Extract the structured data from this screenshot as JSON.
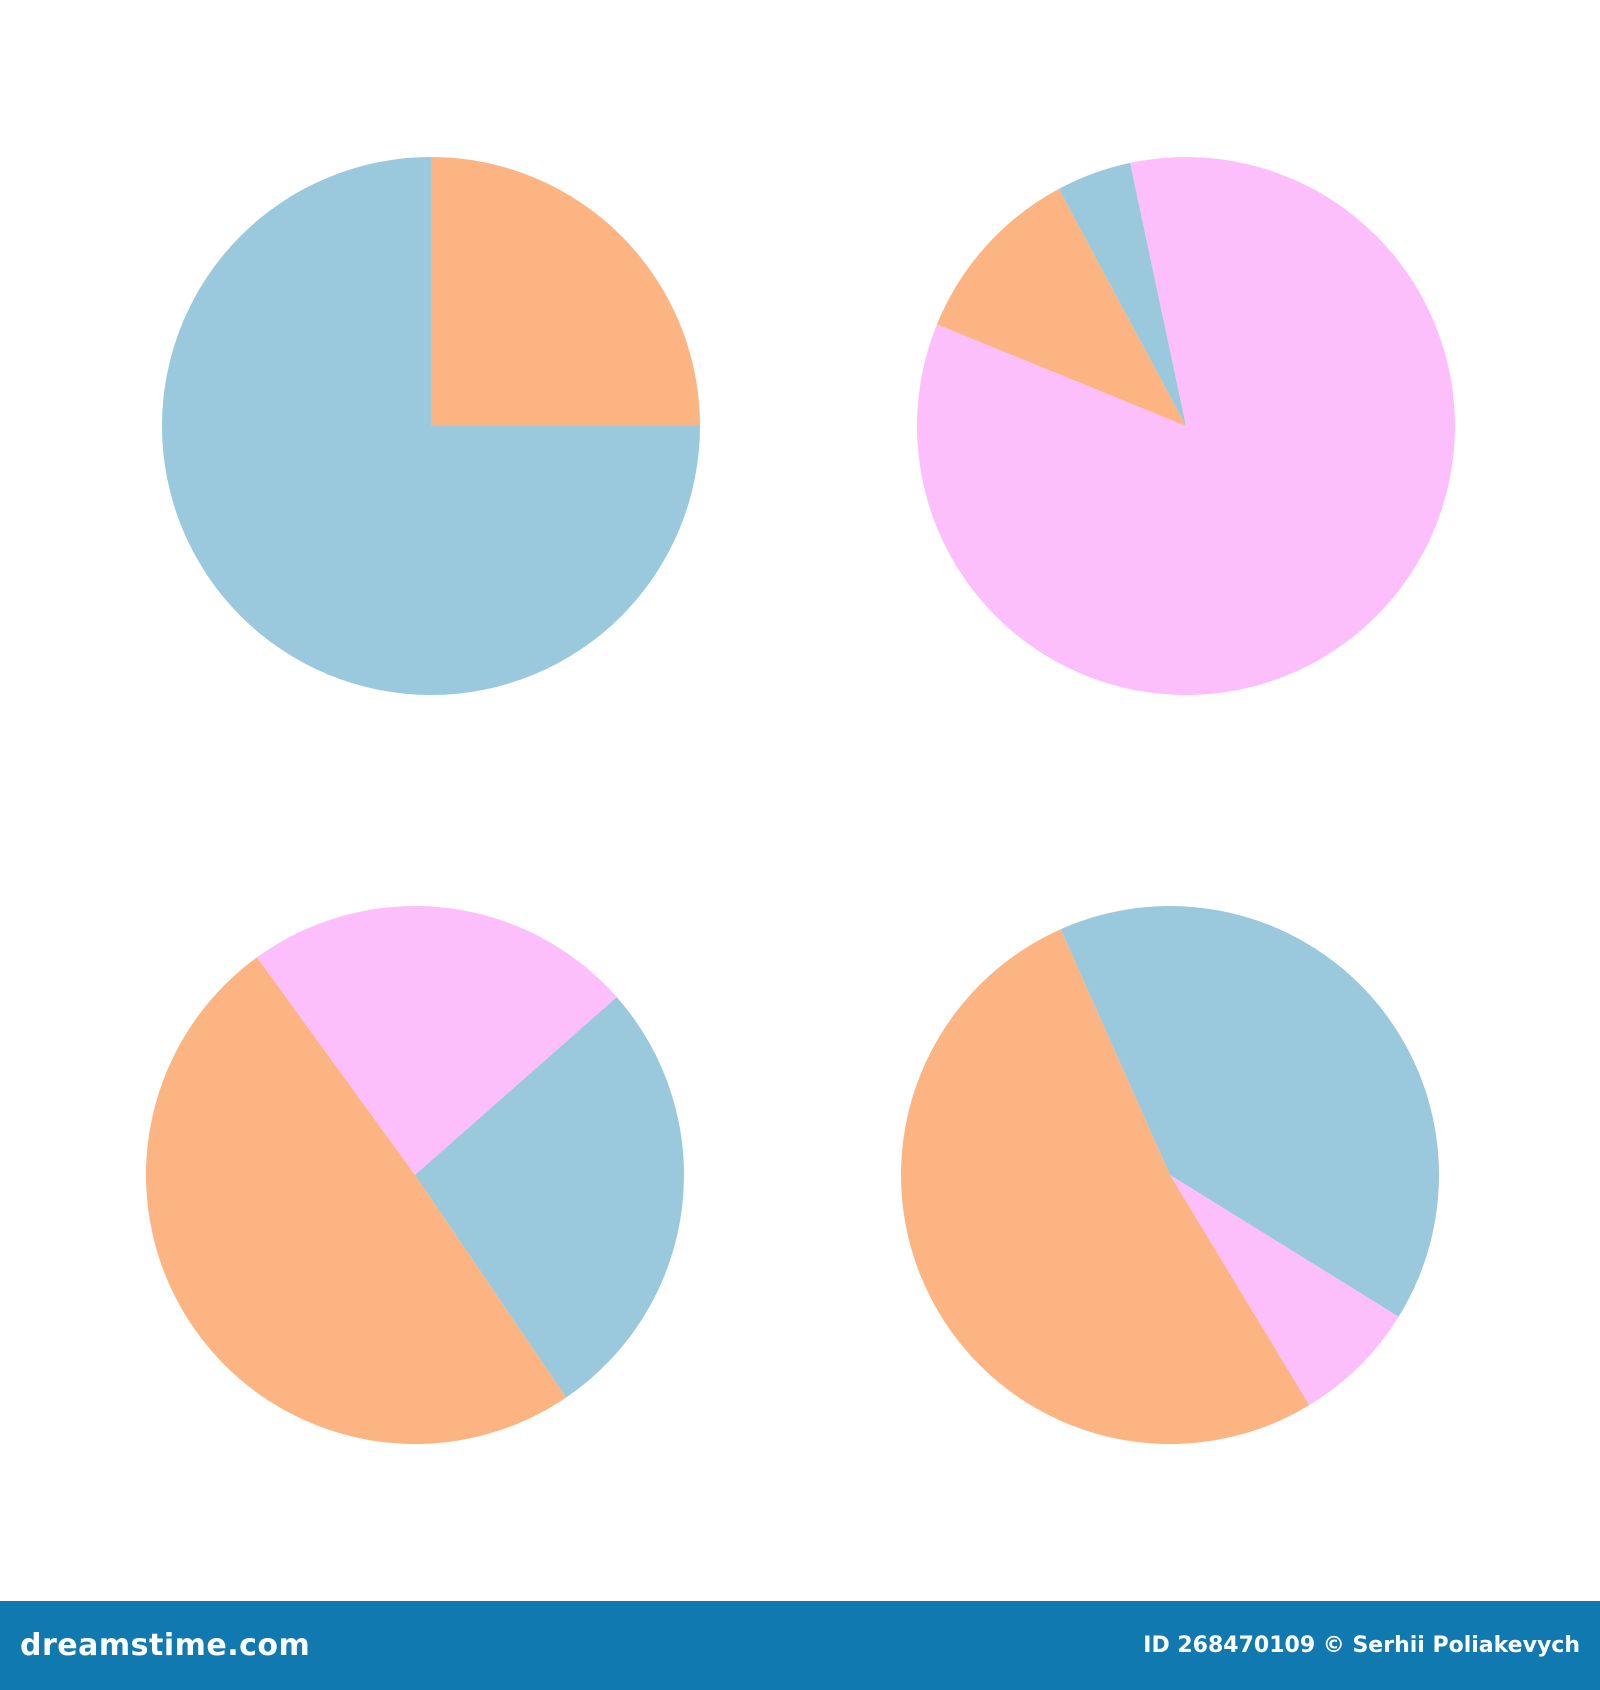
{
  "chart_data": [
    {
      "type": "pie",
      "position": "top-left",
      "start_angle_deg": 0,
      "direction": "clockwise",
      "slices": [
        {
          "value": 25,
          "color": "#fbb482"
        },
        {
          "value": 75,
          "color": "#9ac8dd"
        }
      ]
    },
    {
      "type": "pie",
      "position": "top-right",
      "start_angle_deg": 348,
      "direction": "clockwise",
      "slices": [
        {
          "value": 84.5,
          "color": "#fcbffc"
        },
        {
          "value": 11,
          "color": "#fbb482"
        },
        {
          "value": 4.5,
          "color": "#9ac8dd"
        }
      ]
    },
    {
      "type": "pie",
      "position": "bottom-left",
      "start_angle_deg": 324,
      "direction": "clockwise",
      "slices": [
        {
          "value": 23.5,
          "color": "#fcbffc"
        },
        {
          "value": 27,
          "color": "#9ac8dd"
        },
        {
          "value": 49.5,
          "color": "#fbb482"
        }
      ]
    },
    {
      "type": "pie",
      "position": "bottom-right",
      "start_angle_deg": 336,
      "direction": "clockwise",
      "slices": [
        {
          "value": 40.5,
          "color": "#9ac8dd"
        },
        {
          "value": 7.5,
          "color": "#fcbffc"
        },
        {
          "value": 52,
          "color": "#fbb482"
        }
      ]
    }
  ],
  "footer": {
    "brand": "dreamstime.com",
    "credit": "ID 268470109 © Serhii Poliakevych",
    "background": "#1079b0"
  }
}
